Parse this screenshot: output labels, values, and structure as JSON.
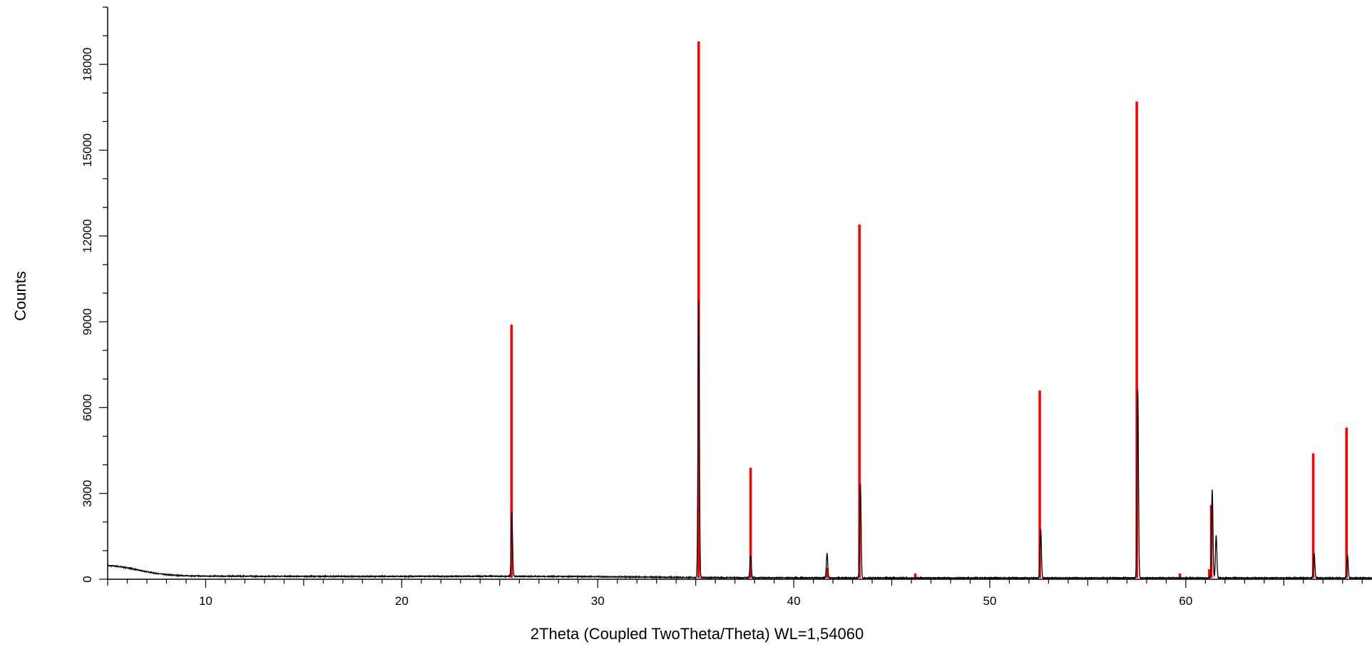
{
  "chart_data": {
    "type": "line",
    "title": "",
    "xlabel": "2Theta (Coupled TwoTheta/Theta) WL=1,54060",
    "ylabel": "Counts",
    "xlim": [
      5,
      69.5
    ],
    "ylim": [
      0,
      20000
    ],
    "x_ticks": [
      10,
      20,
      30,
      40,
      50,
      60
    ],
    "y_ticks": [
      0,
      3000,
      6000,
      9000,
      12000,
      15000,
      18000
    ],
    "grid": false,
    "legend": "none",
    "series": [
      {
        "style": "line",
        "color": "#000000",
        "background": [
          [
            5.0,
            480
          ],
          [
            5.5,
            450
          ],
          [
            6.0,
            400
          ],
          [
            6.5,
            330
          ],
          [
            7.0,
            260
          ],
          [
            7.5,
            200
          ],
          [
            8.0,
            160
          ],
          [
            8.5,
            135
          ],
          [
            9.0,
            120
          ],
          [
            10,
            110
          ],
          [
            15,
            100
          ],
          [
            20,
            100
          ],
          [
            25,
            105
          ],
          [
            30,
            90
          ],
          [
            35,
            60
          ],
          [
            40,
            50
          ],
          [
            45,
            45
          ],
          [
            50,
            45
          ],
          [
            55,
            45
          ],
          [
            60,
            45
          ],
          [
            65,
            45
          ],
          [
            69.5,
            45
          ]
        ],
        "peaks": [
          {
            "x": 25.62,
            "y": 2250
          },
          {
            "x": 35.15,
            "y": 9700
          },
          {
            "x": 37.8,
            "y": 760
          },
          {
            "x": 41.7,
            "y": 860
          },
          {
            "x": 43.4,
            "y": 3300
          },
          {
            "x": 52.6,
            "y": 1700
          },
          {
            "x": 57.55,
            "y": 6600
          },
          {
            "x": 61.35,
            "y": 3100
          },
          {
            "x": 61.55,
            "y": 1500
          },
          {
            "x": 66.55,
            "y": 860
          },
          {
            "x": 68.25,
            "y": 800
          }
        ]
      },
      {
        "style": "sticks",
        "color": "#ff0000",
        "points": [
          {
            "x": 25.6,
            "y": 8900
          },
          {
            "x": 35.15,
            "y": 18800
          },
          {
            "x": 37.8,
            "y": 3900
          },
          {
            "x": 41.7,
            "y": 400
          },
          {
            "x": 43.35,
            "y": 12400
          },
          {
            "x": 46.2,
            "y": 200
          },
          {
            "x": 52.55,
            "y": 6600
          },
          {
            "x": 57.5,
            "y": 16700
          },
          {
            "x": 59.7,
            "y": 200
          },
          {
            "x": 61.2,
            "y": 350
          },
          {
            "x": 61.3,
            "y": 2600
          },
          {
            "x": 66.5,
            "y": 4400
          },
          {
            "x": 68.2,
            "y": 5300
          }
        ]
      }
    ]
  }
}
